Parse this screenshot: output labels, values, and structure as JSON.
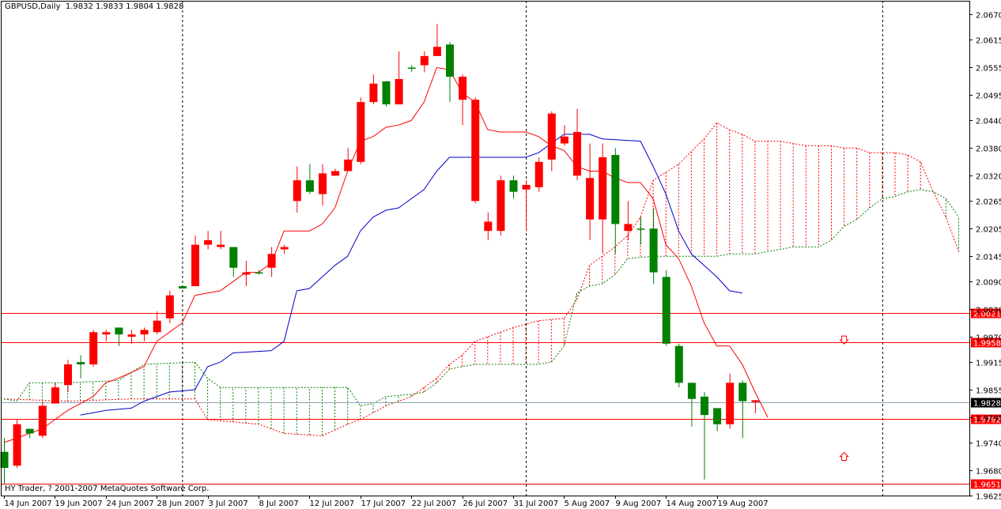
{
  "header": {
    "title": "GBPUSD,Daily  1.9832 1.9833 1.9804 1.9828"
  },
  "footer": {
    "text": "HY Trader, ? 2001-2007 MetaQuotes Software Corp."
  },
  "colors": {
    "up_candle": "#008000",
    "down_candle": "#ff0000",
    "tenkan": "#ff0000",
    "kijun": "#0000cc",
    "span_a": "#ff0000",
    "span_b": "#008000",
    "hline": "#ff0000",
    "current_price": "#000000"
  },
  "chart_data": {
    "type": "candlestick",
    "title": "GBPUSD,Daily",
    "ohlc_header": [
      1.9832,
      1.9833,
      1.9804,
      1.9828
    ],
    "ylim": [
      1.9625,
      2.07
    ],
    "y_ticks": [
      "2.0670",
      "2.0615",
      "2.0555",
      "2.0495",
      "2.0440",
      "2.0380",
      "2.0320",
      "2.0265",
      "2.0205",
      "2.0145",
      "2.0090",
      "2.0030",
      "1.9970",
      "1.9915",
      "1.9855",
      "1.9795",
      "1.9740",
      "1.9680",
      "1.9625"
    ],
    "x_ticks": [
      {
        "label": "14 Jun 2007",
        "i": 0
      },
      {
        "label": "19 Jun 2007",
        "i": 4
      },
      {
        "label": "24 Jun 2007",
        "i": 8
      },
      {
        "label": "28 Jun 2007",
        "i": 12
      },
      {
        "label": "3 Jul 2007",
        "i": 16
      },
      {
        "label": "8 Jul 2007",
        "i": 20
      },
      {
        "label": "12 Jul 2007",
        "i": 24
      },
      {
        "label": "17 Jul 2007",
        "i": 28
      },
      {
        "label": "22 Jul 2007",
        "i": 32
      },
      {
        "label": "26 Jul 2007",
        "i": 36
      },
      {
        "label": "31 Jul 2007",
        "i": 40
      },
      {
        "label": "5 Aug 2007",
        "i": 44
      },
      {
        "label": "9 Aug 2007",
        "i": 48
      },
      {
        "label": "14 Aug 2007",
        "i": 52
      },
      {
        "label": "19 Aug 2007",
        "i": 56
      }
    ],
    "period_separators": [
      14,
      41,
      69
    ],
    "hlines": [
      {
        "value": 2.0021,
        "label": "2.0021"
      },
      {
        "value": 1.9958,
        "label": "1.9958"
      },
      {
        "value": 1.9792,
        "label": "1.9792"
      },
      {
        "value": 1.9651,
        "label": "1.9651"
      }
    ],
    "current_price": {
      "value": 1.9828,
      "label": "1.9828"
    },
    "arrows": [
      {
        "type": "down",
        "i": 66,
        "value": 1.9963
      },
      {
        "type": "up",
        "i": 66,
        "value": 1.971
      }
    ],
    "candles": [
      {
        "o": 1.9685,
        "h": 1.975,
        "l": 1.965,
        "c": 1.972
      },
      {
        "o": 1.978,
        "h": 1.979,
        "l": 1.9685,
        "c": 1.969
      },
      {
        "o": 1.976,
        "h": 1.977,
        "l": 1.975,
        "c": 1.977
      },
      {
        "o": 1.982,
        "h": 1.983,
        "l": 1.975,
        "c": 1.9755
      },
      {
        "o": 1.986,
        "h": 1.987,
        "l": 1.9825,
        "c": 1.9825
      },
      {
        "o": 1.991,
        "h": 1.992,
        "l": 1.985,
        "c": 1.9865
      },
      {
        "o": 1.991,
        "h": 1.993,
        "l": 1.988,
        "c": 1.9915
      },
      {
        "o": 1.998,
        "h": 1.9985,
        "l": 1.9905,
        "c": 1.991
      },
      {
        "o": 1.998,
        "h": 1.9985,
        "l": 1.996,
        "c": 1.9975
      },
      {
        "o": 1.9975,
        "h": 1.999,
        "l": 1.995,
        "c": 1.999
      },
      {
        "o": 1.9975,
        "h": 1.9985,
        "l": 1.9955,
        "c": 1.997
      },
      {
        "o": 1.9985,
        "h": 1.999,
        "l": 1.996,
        "c": 1.9975
      },
      {
        "o": 2.0005,
        "h": 2.0025,
        "l": 1.9975,
        "c": 1.998
      },
      {
        "o": 2.006,
        "h": 2.007,
        "l": 2.0,
        "c": 2.001
      },
      {
        "o": 2.0075,
        "h": 2.008,
        "l": 2.0075,
        "c": 2.008
      },
      {
        "o": 2.017,
        "h": 2.019,
        "l": 2.008,
        "c": 2.008
      },
      {
        "o": 2.018,
        "h": 2.02,
        "l": 2.016,
        "c": 2.017
      },
      {
        "o": 2.017,
        "h": 2.02,
        "l": 2.016,
        "c": 2.0165
      },
      {
        "o": 2.012,
        "h": 2.016,
        "l": 2.01,
        "c": 2.0165
      },
      {
        "o": 2.011,
        "h": 2.0135,
        "l": 2.008,
        "c": 2.0105
      },
      {
        "o": 2.011,
        "h": 2.0115,
        "l": 2.0105,
        "c": 2.011
      },
      {
        "o": 2.015,
        "h": 2.0165,
        "l": 2.01,
        "c": 2.012
      },
      {
        "o": 2.0165,
        "h": 2.017,
        "l": 2.015,
        "c": 2.016
      },
      {
        "o": 2.031,
        "h": 2.034,
        "l": 2.024,
        "c": 2.0265
      },
      {
        "o": 2.0285,
        "h": 2.0345,
        "l": 2.028,
        "c": 2.031
      },
      {
        "o": 2.0325,
        "h": 2.0345,
        "l": 2.0255,
        "c": 2.028
      },
      {
        "o": 2.033,
        "h": 2.0335,
        "l": 2.032,
        "c": 2.032
      },
      {
        "o": 2.0355,
        "h": 2.038,
        "l": 2.033,
        "c": 2.033
      },
      {
        "o": 2.048,
        "h": 2.049,
        "l": 2.0345,
        "c": 2.035
      },
      {
        "o": 2.052,
        "h": 2.054,
        "l": 2.0475,
        "c": 2.048
      },
      {
        "o": 2.0475,
        "h": 2.0525,
        "l": 2.047,
        "c": 2.0525
      },
      {
        "o": 2.053,
        "h": 2.059,
        "l": 2.0475,
        "c": 2.0475
      },
      {
        "o": 2.0555,
        "h": 2.056,
        "l": 2.0545,
        "c": 2.0555
      },
      {
        "o": 2.058,
        "h": 2.059,
        "l": 2.0545,
        "c": 2.056
      },
      {
        "o": 2.06,
        "h": 2.065,
        "l": 2.059,
        "c": 2.058
      },
      {
        "o": 2.0535,
        "h": 2.061,
        "l": 2.048,
        "c": 2.0605
      },
      {
        "o": 2.0535,
        "h": 2.054,
        "l": 2.043,
        "c": 2.0485
      },
      {
        "o": 2.0485,
        "h": 2.049,
        "l": 2.026,
        "c": 2.0265
      },
      {
        "o": 2.022,
        "h": 2.024,
        "l": 2.018,
        "c": 2.02
      },
      {
        "o": 2.031,
        "h": 2.032,
        "l": 2.019,
        "c": 2.02
      },
      {
        "o": 2.0285,
        "h": 2.032,
        "l": 2.027,
        "c": 2.031
      },
      {
        "o": 2.03,
        "h": 2.031,
        "l": 2.02,
        "c": 2.029
      },
      {
        "o": 2.035,
        "h": 2.036,
        "l": 2.0285,
        "c": 2.0295
      },
      {
        "o": 2.0455,
        "h": 2.046,
        "l": 2.033,
        "c": 2.0355
      },
      {
        "o": 2.0405,
        "h": 2.043,
        "l": 2.0385,
        "c": 2.039
      },
      {
        "o": 2.0415,
        "h": 2.0465,
        "l": 2.031,
        "c": 2.032
      },
      {
        "o": 2.0315,
        "h": 2.039,
        "l": 2.018,
        "c": 2.0225
      },
      {
        "o": 2.036,
        "h": 2.039,
        "l": 2.015,
        "c": 2.0225
      },
      {
        "o": 2.0215,
        "h": 2.038,
        "l": 2.015,
        "c": 2.0365
      },
      {
        "o": 2.0215,
        "h": 2.0265,
        "l": 2.018,
        "c": 2.02
      },
      {
        "o": 2.0205,
        "h": 2.023,
        "l": 2.017,
        "c": 2.0205
      },
      {
        "o": 2.011,
        "h": 2.025,
        "l": 2.0085,
        "c": 2.0205
      },
      {
        "o": 1.9955,
        "h": 2.0115,
        "l": 1.995,
        "c": 2.01
      },
      {
        "o": 1.987,
        "h": 1.9955,
        "l": 1.986,
        "c": 1.995
      },
      {
        "o": 1.9835,
        "h": 1.987,
        "l": 1.9775,
        "c": 1.987
      },
      {
        "o": 1.98,
        "h": 1.985,
        "l": 1.966,
        "c": 1.984
      },
      {
        "o": 1.978,
        "h": 1.981,
        "l": 1.9765,
        "c": 1.9815
      },
      {
        "o": 1.987,
        "h": 1.989,
        "l": 1.977,
        "c": 1.978
      },
      {
        "o": 1.983,
        "h": 1.9875,
        "l": 1.975,
        "c": 1.987
      },
      {
        "o": 1.9832,
        "h": 1.9833,
        "l": 1.9804,
        "c": 1.9828
      }
    ],
    "tenkan": [
      [
        0,
        1.974
      ],
      [
        3,
        1.977
      ],
      [
        5,
        1.981
      ],
      [
        7,
        1.984
      ],
      [
        8,
        1.987
      ],
      [
        9,
        1.988
      ],
      [
        11,
        1.9905
      ],
      [
        12,
        1.996
      ],
      [
        13,
        1.998
      ],
      [
        14,
        2.0
      ],
      [
        15,
        2.006
      ],
      [
        16,
        2.0065
      ],
      [
        17,
        2.007
      ],
      [
        18,
        2.009
      ],
      [
        19,
        2.011
      ],
      [
        20,
        2.011
      ],
      [
        21,
        2.013
      ],
      [
        22,
        2.02
      ],
      [
        24,
        2.02
      ],
      [
        25,
        2.0215
      ],
      [
        26,
        2.025
      ],
      [
        27,
        2.033
      ],
      [
        28,
        2.0395
      ],
      [
        29,
        2.0405
      ],
      [
        30,
        2.0425
      ],
      [
        31,
        2.043
      ],
      [
        32,
        2.044
      ],
      [
        33,
        2.048
      ],
      [
        34,
        2.0555
      ],
      [
        35,
        2.055
      ],
      [
        36,
        2.05
      ],
      [
        37,
        2.048
      ],
      [
        38,
        2.042
      ],
      [
        39,
        2.0415
      ],
      [
        41,
        2.0415
      ],
      [
        42,
        2.0405
      ],
      [
        43,
        2.0385
      ],
      [
        44,
        2.0375
      ],
      [
        45,
        2.034
      ],
      [
        46,
        2.033
      ],
      [
        47,
        2.033
      ],
      [
        48,
        2.0315
      ],
      [
        49,
        2.0305
      ],
      [
        50,
        2.0305
      ],
      [
        51,
        2.027
      ],
      [
        52,
        2.017
      ],
      [
        53,
        2.014
      ],
      [
        54,
        2.008
      ],
      [
        55,
        2.0
      ],
      [
        56,
        1.995
      ],
      [
        57,
        1.995
      ],
      [
        58,
        1.991
      ],
      [
        59,
        1.985
      ],
      [
        60,
        1.9795
      ]
    ],
    "kijun": [
      [
        6,
        1.98
      ],
      [
        7,
        1.9805
      ],
      [
        8,
        1.981
      ],
      [
        10,
        1.9815
      ],
      [
        11,
        1.983
      ],
      [
        13,
        1.985
      ],
      [
        15,
        1.9855
      ],
      [
        16,
        1.9905
      ],
      [
        17,
        1.9915
      ],
      [
        18,
        1.9935
      ],
      [
        21,
        1.994
      ],
      [
        22,
        1.996
      ],
      [
        23,
        2.007
      ],
      [
        24,
        2.0075
      ],
      [
        25,
        2.01
      ],
      [
        26,
        2.0125
      ],
      [
        27,
        2.0145
      ],
      [
        28,
        2.02
      ],
      [
        29,
        2.023
      ],
      [
        30,
        2.0245
      ],
      [
        31,
        2.025
      ],
      [
        33,
        2.029
      ],
      [
        34,
        2.033
      ],
      [
        35,
        2.036
      ],
      [
        36,
        2.036
      ],
      [
        41,
        2.036
      ],
      [
        42,
        2.037
      ],
      [
        43,
        2.039
      ],
      [
        44,
        2.041
      ],
      [
        46,
        2.041
      ],
      [
        47,
        2.04
      ],
      [
        50,
        2.0395
      ],
      [
        51,
        2.034
      ],
      [
        52,
        2.028
      ],
      [
        53,
        2.02
      ],
      [
        54,
        2.015
      ],
      [
        55,
        2.0125
      ],
      [
        56,
        2.01
      ],
      [
        57,
        2.007
      ],
      [
        58,
        2.0065
      ]
    ],
    "span_a": [
      [
        0,
        1.9835
      ],
      [
        5,
        1.983
      ],
      [
        10,
        1.9835
      ],
      [
        15,
        1.9835
      ],
      [
        16,
        1.979
      ],
      [
        20,
        1.978
      ],
      [
        22,
        1.976
      ],
      [
        25,
        1.9755
      ],
      [
        27,
        1.978
      ],
      [
        28,
        1.979
      ],
      [
        30,
        1.982
      ],
      [
        32,
        1.984
      ],
      [
        34,
        1.988
      ],
      [
        35,
        1.991
      ],
      [
        36,
        1.993
      ],
      [
        37,
        1.996
      ],
      [
        40,
        1.999
      ],
      [
        42,
        2.0005
      ],
      [
        44,
        2.001
      ],
      [
        45,
        2.005
      ],
      [
        46,
        2.0125
      ],
      [
        47,
        2.0145
      ],
      [
        48,
        2.0165
      ],
      [
        49,
        2.019
      ],
      [
        50,
        2.023
      ],
      [
        51,
        2.031
      ],
      [
        53,
        2.0345
      ],
      [
        55,
        2.04
      ],
      [
        56,
        2.0435
      ],
      [
        57,
        2.042
      ],
      [
        58,
        2.041
      ],
      [
        59,
        2.0395
      ],
      [
        61,
        2.0395
      ],
      [
        62,
        2.039
      ],
      [
        63,
        2.0385
      ],
      [
        65,
        2.0385
      ],
      [
        66,
        2.038
      ],
      [
        67,
        2.038
      ],
      [
        68,
        2.037
      ],
      [
        70,
        2.037
      ],
      [
        71,
        2.0365
      ],
      [
        72,
        2.035
      ],
      [
        73,
        2.0285
      ],
      [
        74,
        2.023
      ],
      [
        75,
        2.0155
      ]
    ],
    "span_b": [
      [
        0,
        1.9835
      ],
      [
        1,
        1.983
      ],
      [
        2,
        1.987
      ],
      [
        5,
        1.987
      ],
      [
        9,
        1.9875
      ],
      [
        11,
        1.991
      ],
      [
        15,
        1.9915
      ],
      [
        16,
        1.988
      ],
      [
        17,
        1.986
      ],
      [
        25,
        1.986
      ],
      [
        27,
        1.986
      ],
      [
        28,
        1.982
      ],
      [
        29,
        1.9825
      ],
      [
        30,
        1.984
      ],
      [
        32,
        1.9845
      ],
      [
        33,
        1.985
      ],
      [
        34,
        1.987
      ],
      [
        35,
        1.99
      ],
      [
        37,
        1.991
      ],
      [
        40,
        1.991
      ],
      [
        41,
        1.991
      ],
      [
        42,
        1.991
      ],
      [
        43,
        1.9915
      ],
      [
        44,
        1.995
      ],
      [
        45,
        2.0065
      ],
      [
        46,
        2.008
      ],
      [
        47,
        2.0085
      ],
      [
        48,
        2.0105
      ],
      [
        49,
        2.014
      ],
      [
        51,
        2.0145
      ],
      [
        52,
        2.0145
      ],
      [
        53,
        2.0145
      ],
      [
        54,
        2.0145
      ],
      [
        56,
        2.0145
      ],
      [
        57,
        2.015
      ],
      [
        58,
        2.015
      ],
      [
        59,
        2.015
      ],
      [
        60,
        2.0155
      ],
      [
        61,
        2.016
      ],
      [
        62,
        2.0165
      ],
      [
        63,
        2.0165
      ],
      [
        64,
        2.0165
      ],
      [
        65,
        2.018
      ],
      [
        66,
        2.021
      ],
      [
        67,
        2.0225
      ],
      [
        68,
        2.025
      ],
      [
        69,
        2.027
      ],
      [
        70,
        2.0275
      ],
      [
        71,
        2.0285
      ],
      [
        72,
        2.029
      ],
      [
        73,
        2.0285
      ],
      [
        74,
        2.027
      ],
      [
        75,
        2.023
      ]
    ]
  }
}
